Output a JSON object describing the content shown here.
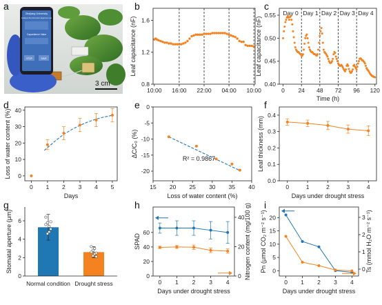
{
  "colors": {
    "orange": "#f58220",
    "blue": "#1f77b4",
    "dark": "#1a1a1a"
  },
  "panel_letters": [
    "a",
    "b",
    "c",
    "d",
    "e",
    "f",
    "g",
    "h",
    "i"
  ],
  "photo": {
    "phone_header": "Zhejiang University",
    "phone_subheader": "Intelligent Bio-Information Equipment Lab",
    "phone_value_label": "Capacitance Value",
    "phone_btn_left": "STOP",
    "phone_btn_right": "SAVE",
    "scale_bar": "3 cm"
  },
  "chart_data": [
    {
      "id": "b",
      "type": "line",
      "ylabel": "Leaf capacitance (nF)",
      "xticks": [
        "10:00",
        "16:00",
        "22:00",
        "04:00",
        "10:00"
      ],
      "yticks": [
        "0.8",
        "1.2",
        "1.6"
      ],
      "ylim": [
        0.8,
        1.75
      ],
      "series": [
        {
          "x": [
            0,
            0.3,
            0.6,
            1,
            1.5,
            2,
            2.5,
            3,
            3.5,
            4,
            4.5,
            5,
            5.5,
            6,
            6.5,
            7,
            7.5,
            8,
            8.5,
            9,
            9.5,
            10,
            10.5,
            11,
            11.5,
            12,
            12.5,
            13,
            13.5,
            14,
            14.5,
            15,
            15.5,
            16,
            16.5,
            17,
            17.5,
            18,
            18.5,
            19,
            19.5,
            20,
            20.5,
            21,
            21.5,
            22,
            22.5,
            23,
            23.5,
            24
          ],
          "y": [
            1.36,
            1.37,
            1.36,
            1.35,
            1.34,
            1.33,
            1.32,
            1.32,
            1.31,
            1.31,
            1.3,
            1.3,
            1.3,
            1.3,
            1.3,
            1.31,
            1.32,
            1.34,
            1.37,
            1.4,
            1.41,
            1.42,
            1.42,
            1.42,
            1.42,
            1.43,
            1.43,
            1.43,
            1.43,
            1.44,
            1.44,
            1.44,
            1.44,
            1.44,
            1.44,
            1.44,
            1.43,
            1.42,
            1.41,
            1.4,
            1.39,
            1.37,
            1.34,
            1.33,
            1.33,
            1.29,
            1.28,
            1.28,
            1.28,
            1.27
          ]
        }
      ],
      "vlines": [
        6,
        12,
        18,
        24
      ]
    },
    {
      "id": "c",
      "type": "line",
      "xlabel": "Time (h)",
      "ylabel": "Leaf capacitance (nF)",
      "xticks": [
        "0",
        "24",
        "48",
        "72",
        "96",
        "120"
      ],
      "yticks": [
        "0.40",
        "0.45",
        "0.50",
        "0.55"
      ],
      "xlim": [
        -5,
        122
      ],
      "ylim": [
        0.4,
        0.565
      ],
      "day_labels": [
        "Day 0",
        "Day 1",
        "Day 2",
        "Day 3",
        "Day 4"
      ],
      "vlines": [
        24,
        48,
        72,
        96
      ],
      "series": [
        {
          "x": [
            0,
            1,
            2,
            3,
            4,
            5,
            6,
            7,
            8,
            9,
            10,
            11,
            12,
            13,
            14,
            15,
            16,
            17,
            18,
            19,
            20,
            21,
            22,
            23,
            24,
            25,
            26,
            27,
            28,
            29,
            30,
            31,
            32,
            33,
            34,
            35,
            36,
            37,
            38,
            39,
            40,
            41,
            42,
            43,
            44,
            45,
            46,
            47,
            48,
            49,
            50,
            51,
            52,
            53,
            54,
            55,
            56,
            57,
            58,
            59,
            60,
            61,
            62,
            63,
            64,
            65,
            66,
            67,
            68,
            69,
            70,
            71,
            72,
            73,
            74,
            75,
            76,
            77,
            78,
            79,
            80,
            81,
            82,
            83,
            84,
            85,
            86,
            87,
            88,
            89,
            90,
            91,
            92,
            93,
            94,
            95,
            96,
            97,
            98,
            99,
            100,
            101,
            102,
            103,
            104,
            105,
            106,
            107,
            108,
            109,
            110,
            111,
            112,
            113,
            114,
            115,
            116,
            117,
            118,
            119,
            120
          ],
          "y": [
            0.5,
            0.515,
            0.525,
            0.535,
            0.54,
            0.545,
            0.548,
            0.545,
            0.54,
            0.546,
            0.548,
            0.54,
            0.53,
            0.515,
            0.502,
            0.49,
            0.48,
            0.475,
            0.472,
            0.47,
            0.47,
            0.468,
            0.466,
            0.465,
            0.462,
            0.462,
            0.465,
            0.475,
            0.488,
            0.5,
            0.505,
            0.508,
            0.5,
            0.49,
            0.48,
            0.475,
            0.472,
            0.47,
            0.47,
            0.468,
            0.466,
            0.465,
            0.465,
            0.463,
            0.462,
            0.465,
            0.475,
            0.49,
            0.505,
            0.515,
            0.522,
            0.51,
            0.49,
            0.475,
            0.47,
            0.468,
            0.466,
            0.463,
            0.46,
            0.455,
            0.45,
            0.447,
            0.446,
            0.447,
            0.45,
            0.455,
            0.465,
            0.47,
            0.468,
            0.46,
            0.455,
            0.45,
            0.445,
            0.442,
            0.44,
            0.44,
            0.442,
            0.44,
            0.437,
            0.433,
            0.43,
            0.428,
            0.432,
            0.44,
            0.443,
            0.44,
            0.433,
            0.428,
            0.425,
            0.425,
            0.428,
            0.432,
            0.44,
            0.442,
            0.438,
            0.435,
            0.432,
            0.438,
            0.445,
            0.45,
            0.455,
            0.456,
            0.455,
            0.452,
            0.452,
            0.45,
            0.448,
            0.445,
            0.44,
            0.435,
            0.432,
            0.43,
            0.428,
            0.425,
            0.422,
            0.42,
            0.418,
            0.418,
            0.416,
            0.416,
            0.415
          ]
        }
      ]
    },
    {
      "id": "d",
      "type": "scatter",
      "xlabel": "Days",
      "ylabel": "Loss of water content (%)",
      "xticks": [
        "0",
        "1",
        "2",
        "3",
        "4",
        "5"
      ],
      "yticks": [
        "0",
        "10",
        "20",
        "30",
        "40"
      ],
      "xlim": [
        -0.4,
        5.3
      ],
      "ylim": [
        -3,
        42
      ],
      "points": {
        "x": [
          0,
          1,
          2,
          3,
          4,
          5
        ],
        "y": [
          0,
          19,
          26,
          31,
          34,
          37
        ],
        "err": [
          0,
          3,
          4,
          4,
          4,
          4
        ]
      },
      "fit": {
        "x": [
          0.8,
          1.5,
          2,
          2.5,
          3,
          3.5,
          4,
          4.5,
          5
        ],
        "y": [
          15.5,
          21.5,
          25.3,
          28.3,
          30.8,
          32.9,
          34.6,
          35.9,
          36.9
        ]
      }
    },
    {
      "id": "e",
      "type": "scatter",
      "xlabel": "Loss of water content (%)",
      "ylabel": "ΔC/C₀ (%)",
      "xticks": [
        "15",
        "20",
        "25",
        "30",
        "35",
        "40"
      ],
      "yticks": [
        "-20",
        "-15",
        "-10",
        "-5",
        "0"
      ],
      "xlim": [
        15,
        40
      ],
      "ylim": [
        -23,
        0
      ],
      "points": {
        "x": [
          19,
          26,
          31,
          35,
          37
        ],
        "y": [
          -9.3,
          -12.2,
          -16.2,
          -17.8,
          -19.7
        ]
      },
      "fit": {
        "x": [
          19,
          37
        ],
        "y": [
          -9.3,
          -19.8
        ]
      },
      "annotation": "R² = 0.9867"
    },
    {
      "id": "f",
      "type": "line",
      "xlabel": "Days under drought stress",
      "ylabel": "Leaf thickness (mm)",
      "xticks": [
        "0",
        "1",
        "2",
        "3",
        "4"
      ],
      "yticks": [
        "0.0",
        "0.1",
        "0.2",
        "0.3",
        "0.4"
      ],
      "xlim": [
        -0.4,
        4.4
      ],
      "ylim": [
        0,
        0.45
      ],
      "points": {
        "x": [
          0,
          1,
          2,
          3,
          4
        ],
        "y": [
          0.358,
          0.35,
          0.337,
          0.315,
          0.305
        ],
        "err": [
          0.02,
          0.02,
          0.025,
          0.025,
          0.03
        ]
      }
    },
    {
      "id": "g",
      "type": "bar",
      "ylabel": "Stomatal aperture (μm)",
      "categories": [
        "Normal condition",
        "Drought stress"
      ],
      "values": [
        5.3,
        2.6
      ],
      "err": [
        1.4,
        0.6
      ],
      "yticks": [
        "0",
        "2",
        "4",
        "6"
      ],
      "ylim": [
        0,
        7.5
      ],
      "dots": [
        [
          6.4,
          5.8,
          5.4,
          5.1,
          5.6,
          4.6,
          4.8,
          5.9
        ],
        [
          3.2,
          2.8,
          2.4,
          2.1,
          2.6,
          2.2,
          3.0,
          2.5
        ]
      ]
    },
    {
      "id": "h",
      "type": "line",
      "xlabel": "Days under drought stress",
      "ylabel": "SPAD",
      "y2label": "Nitrogen content (mg/100 g)",
      "xticks": [
        "0",
        "1",
        "2",
        "3",
        "4"
      ],
      "yticks": [
        "0",
        "20",
        "40",
        "60"
      ],
      "y2ticks": [
        "0",
        "20",
        "40"
      ],
      "xlim": [
        -0.4,
        4.4
      ],
      "ylim": [
        0,
        95
      ],
      "y2lim": [
        0,
        47
      ],
      "series": [
        {
          "x": [
            0,
            1,
            2,
            3,
            4
          ],
          "y": [
            66,
            66,
            66,
            63,
            60
          ],
          "err": [
            7,
            10,
            10,
            12,
            15
          ],
          "axis": "left"
        },
        {
          "x": [
            0,
            1,
            2,
            3,
            4
          ],
          "y": [
            19.5,
            19.8,
            19.6,
            17.5,
            17.0
          ],
          "err": [
            0.8,
            1.0,
            1.5,
            1.5,
            1.5
          ],
          "axis": "right"
        }
      ]
    },
    {
      "id": "i",
      "type": "line",
      "xlabel": "Days under drought stress",
      "ylabel": "Pn (μmol CO₂ m⁻² s⁻¹)",
      "y2label": "Ts (mmol H₂O m⁻² s⁻¹)",
      "xticks": [
        "0",
        "1",
        "2",
        "3",
        "4"
      ],
      "yticks": [
        "0",
        "5",
        "10",
        "15",
        "20"
      ],
      "y2ticks": [
        "0",
        "1",
        "2",
        "3"
      ],
      "xlim": [
        -0.4,
        4.4
      ],
      "ylim": [
        -2,
        24
      ],
      "y2lim": [
        -0.4,
        3.6
      ],
      "series": [
        {
          "x": [
            0,
            1,
            2,
            3,
            4
          ],
          "y": [
            21,
            11,
            9,
            0,
            -0.6
          ],
          "axis": "left"
        },
        {
          "x": [
            0,
            1,
            2,
            3,
            4
          ],
          "y": [
            1.9,
            0.4,
            0.2,
            -0.05,
            -0.1
          ],
          "axis": "right"
        }
      ]
    }
  ]
}
